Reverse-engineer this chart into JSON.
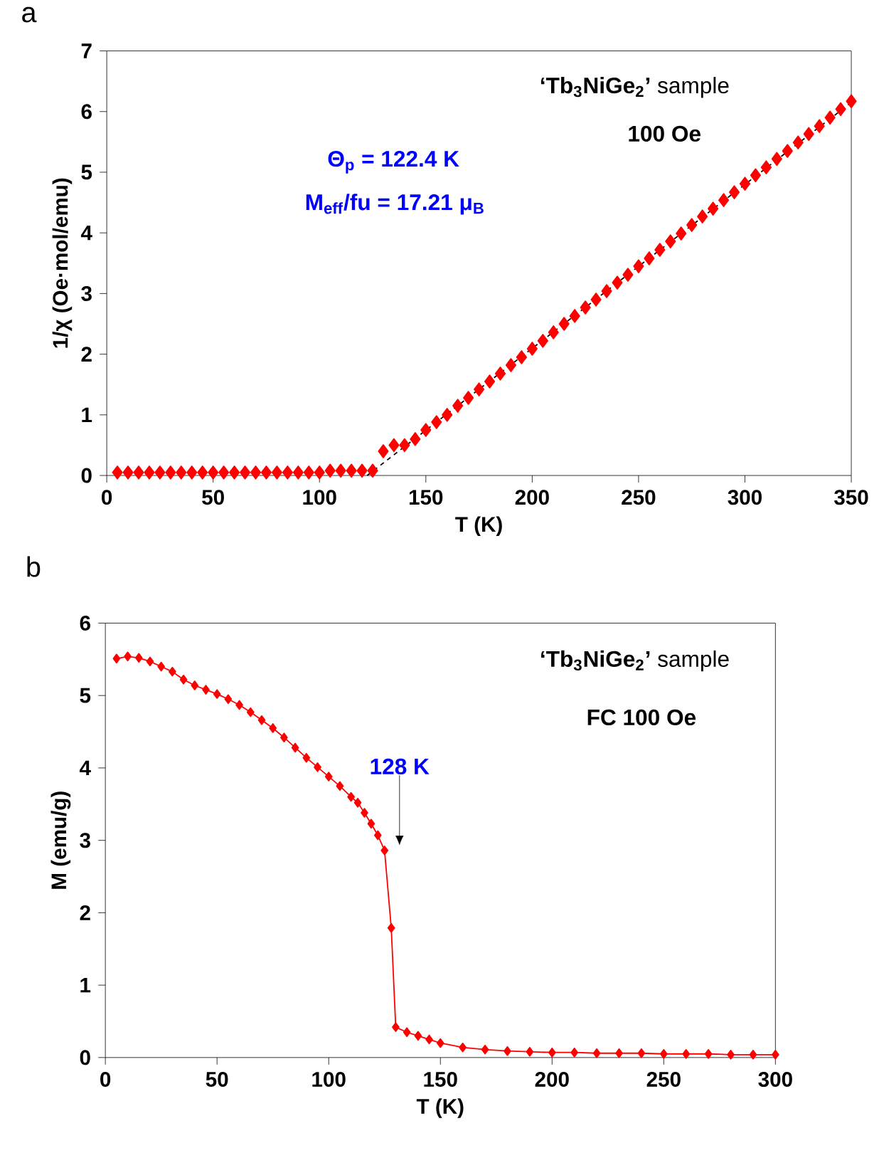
{
  "chart_data": [
    {
      "type": "scatter",
      "title": "a",
      "xlabel": "T (K)",
      "ylabel": "1/χ (Oe·mol/emu)",
      "xlim": [
        0,
        350
      ],
      "ylim": [
        0,
        7
      ],
      "xticks": [
        0,
        50,
        100,
        150,
        200,
        250,
        300,
        350
      ],
      "yticks": [
        0,
        1,
        2,
        3,
        4,
        5,
        6,
        7
      ],
      "annotations": [
        "**‘Tb$_{3}$NiGe$_{2}$’** sample",
        "100 Oe",
        "Θ$_{p}$ = 122.4 K",
        "M$_{eff}$/fu = 17.21 μ$_{B}$"
      ],
      "x": [
        5,
        10,
        15,
        20,
        25,
        30,
        35,
        40,
        45,
        50,
        55,
        60,
        65,
        70,
        75,
        80,
        85,
        90,
        95,
        100,
        105,
        110,
        115,
        120,
        125,
        130,
        135,
        140,
        145,
        150,
        155,
        160,
        165,
        170,
        175,
        180,
        185,
        190,
        195,
        200,
        205,
        210,
        215,
        220,
        225,
        230,
        235,
        240,
        245,
        250,
        255,
        260,
        265,
        270,
        275,
        280,
        285,
        290,
        295,
        300,
        305,
        310,
        315,
        320,
        325,
        330,
        335,
        340,
        345,
        350
      ],
      "series": [
        {
          "marker": "diamond",
          "color": "#ff0000",
          "values": [
            0.05,
            0.05,
            0.05,
            0.05,
            0.05,
            0.05,
            0.05,
            0.05,
            0.05,
            0.05,
            0.05,
            0.05,
            0.05,
            0.05,
            0.05,
            0.05,
            0.05,
            0.05,
            0.05,
            0.05,
            0.08,
            0.08,
            0.08,
            0.08,
            0.08,
            0.4,
            0.5,
            0.5,
            0.6,
            0.75,
            0.88,
            1.0,
            1.15,
            1.28,
            1.42,
            1.55,
            1.68,
            1.82,
            1.95,
            2.09,
            2.22,
            2.36,
            2.5,
            2.63,
            2.77,
            2.9,
            3.04,
            3.18,
            3.31,
            3.45,
            3.58,
            3.72,
            3.86,
            3.99,
            4.13,
            4.27,
            4.4,
            4.54,
            4.67,
            4.81,
            4.95,
            5.08,
            5.22,
            5.35,
            5.49,
            5.63,
            5.76,
            5.9,
            6.04,
            6.17
          ]
        },
        {
          "type": "line",
          "marker": "none",
          "line_style": "dashed",
          "color": "#000000",
          "x": [
            122.4,
            350
          ],
          "values": [
            0,
            6.15
          ]
        }
      ]
    },
    {
      "type": "line",
      "title": "b",
      "xlabel": "T (K)",
      "ylabel": "M (emu/g)",
      "xlim": [
        0,
        300
      ],
      "ylim": [
        0,
        6
      ],
      "xticks": [
        0,
        50,
        100,
        150,
        200,
        250,
        300
      ],
      "yticks": [
        0,
        1,
        2,
        3,
        4,
        5,
        6
      ],
      "annotations": [
        "**‘Tb$_{3}$NiGe$_{2}$’** sample",
        "FC 100 Oe",
        "128 K"
      ],
      "x": [
        5,
        10,
        15,
        20,
        25,
        30,
        35,
        40,
        45,
        50,
        55,
        60,
        65,
        70,
        75,
        80,
        85,
        90,
        95,
        100,
        105,
        110,
        113,
        116,
        119,
        122,
        125,
        128,
        130,
        135,
        140,
        145,
        150,
        160,
        170,
        180,
        190,
        200,
        210,
        220,
        230,
        240,
        250,
        260,
        270,
        280,
        290,
        300
      ],
      "series": [
        {
          "marker": "diamond",
          "line_style": "solid",
          "color": "#ff0000",
          "values": [
            5.51,
            5.54,
            5.52,
            5.47,
            5.4,
            5.33,
            5.22,
            5.14,
            5.08,
            5.02,
            4.95,
            4.87,
            4.77,
            4.66,
            4.55,
            4.42,
            4.28,
            4.14,
            4.01,
            3.88,
            3.75,
            3.6,
            3.52,
            3.38,
            3.23,
            3.07,
            2.86,
            1.79,
            0.42,
            0.35,
            0.3,
            0.25,
            0.2,
            0.14,
            0.11,
            0.09,
            0.08,
            0.07,
            0.07,
            0.06,
            0.06,
            0.06,
            0.05,
            0.05,
            0.05,
            0.04,
            0.04,
            0.04
          ]
        }
      ]
    }
  ]
}
